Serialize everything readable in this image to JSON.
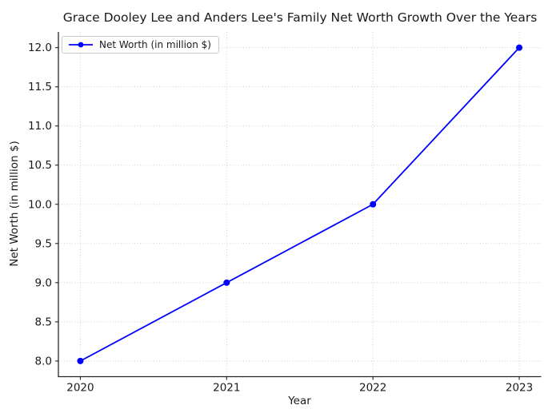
{
  "chart_data": {
    "type": "line",
    "title": "Grace Dooley Lee and Anders Lee's Family Net Worth Growth Over the Years",
    "xlabel": "Year",
    "ylabel": "Net Worth (in million $)",
    "legend": [
      "Net Worth (in million $)"
    ],
    "legend_position": "upper left",
    "x": [
      2020,
      2021,
      2022,
      2023
    ],
    "series": [
      {
        "name": "Net Worth (in million $)",
        "values": [
          8.0,
          9.0,
          10.0,
          12.0
        ]
      }
    ],
    "xticks": [
      2020,
      2021,
      2022,
      2023
    ],
    "yticks": [
      8.0,
      8.5,
      9.0,
      9.5,
      10.0,
      10.5,
      11.0,
      11.5,
      12.0
    ],
    "xlim": [
      2019.85,
      2023.15
    ],
    "ylim": [
      7.8,
      12.2
    ],
    "grid": true,
    "grid_style": "dotted",
    "line_color": "#0000ff",
    "marker": "circle"
  }
}
